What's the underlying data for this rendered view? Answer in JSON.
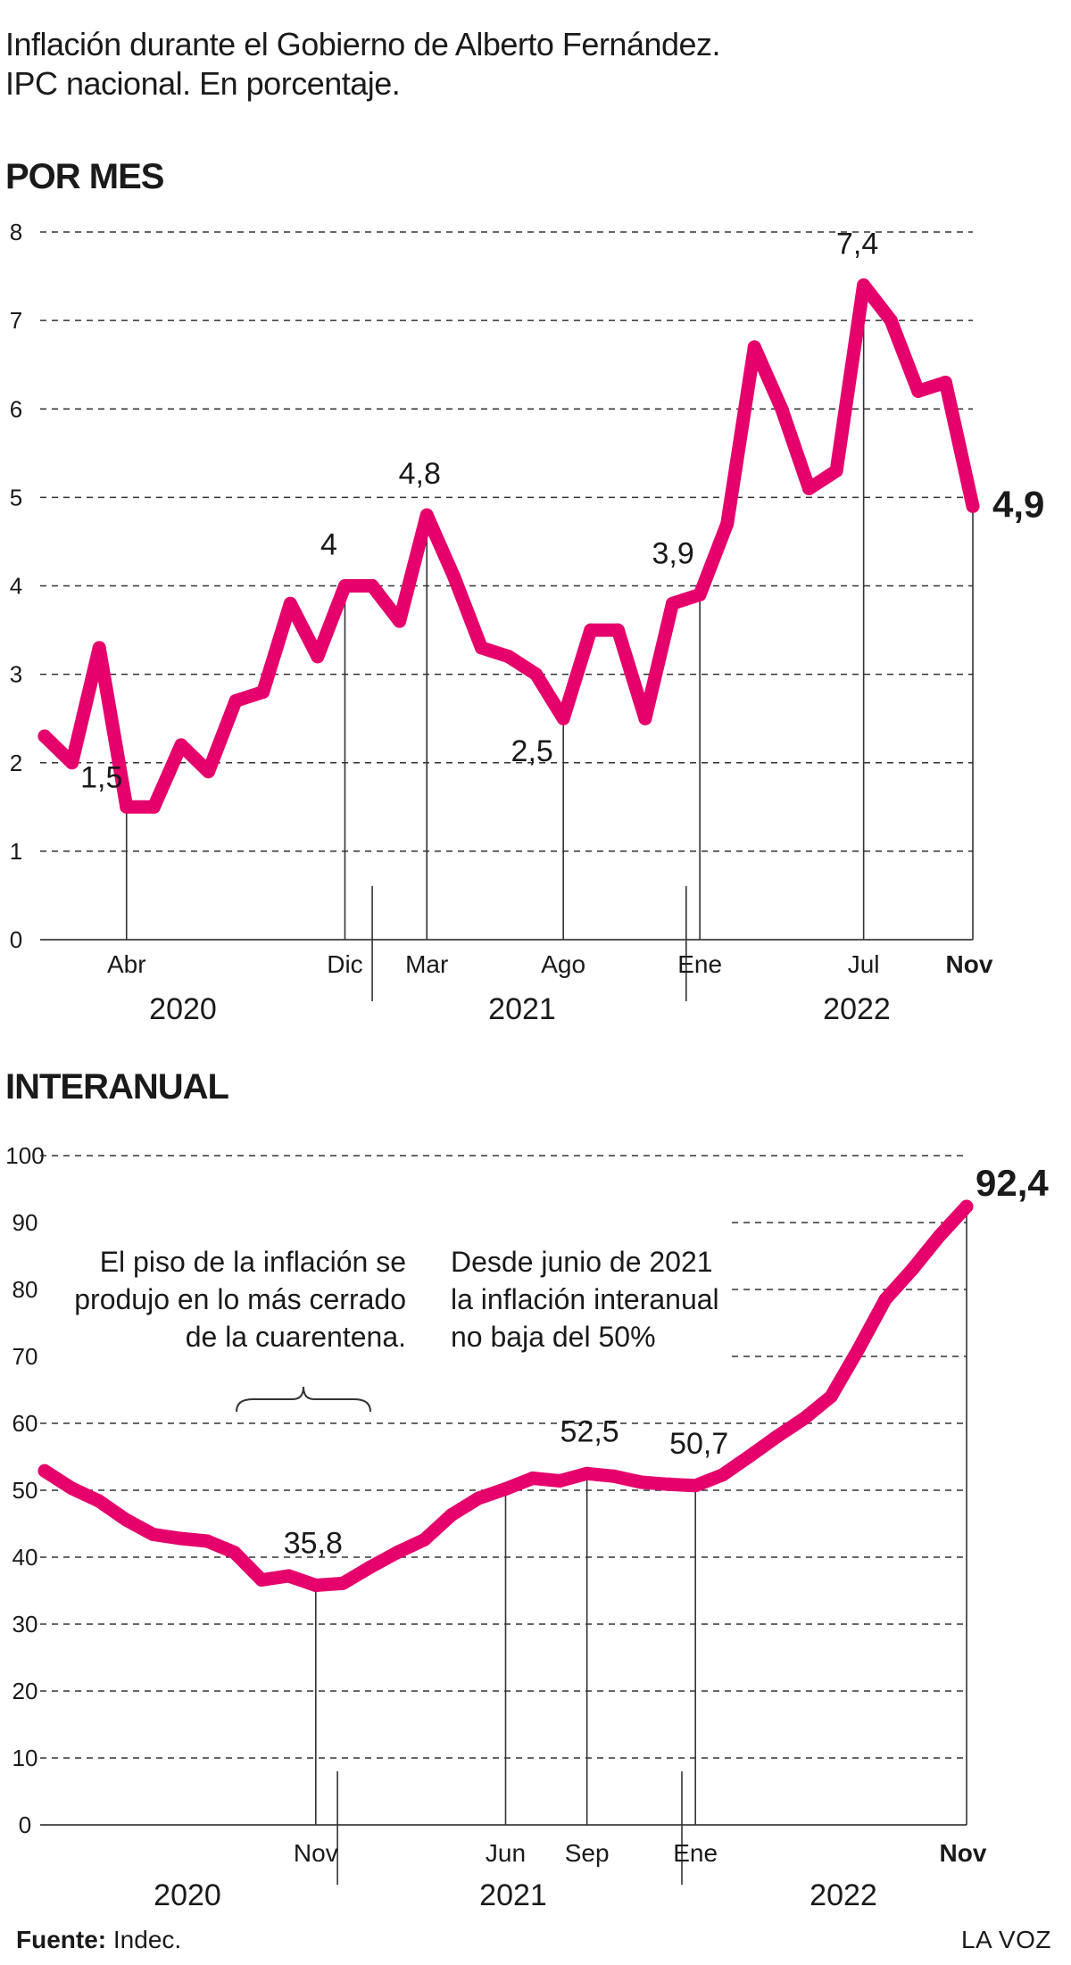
{
  "title_line1": "Inflación durante el Gobierno de Alberto Fernández.",
  "title_line2": "IPC nacional. En porcentaje.",
  "footer": {
    "source_label": "Fuente:",
    "source_value": "Indec.",
    "brand": "LA VOZ"
  },
  "colors": {
    "line": "#e6006b",
    "text": "#1a1a1a",
    "grid": "#333333"
  },
  "chart_data": [
    {
      "type": "line",
      "section_title": "POR MES",
      "ylim": [
        0,
        8
      ],
      "yticks": [
        "0",
        "1",
        "2",
        "3",
        "4",
        "5",
        "6",
        "7",
        "8"
      ],
      "x": [
        "2020-01",
        "2020-02",
        "2020-03",
        "2020-04",
        "2020-05",
        "2020-06",
        "2020-07",
        "2020-08",
        "2020-09",
        "2020-10",
        "2020-11",
        "2020-12",
        "2021-01",
        "2021-02",
        "2021-03",
        "2021-04",
        "2021-05",
        "2021-06",
        "2021-07",
        "2021-08",
        "2021-09",
        "2021-10",
        "2021-11",
        "2021-12",
        "2022-01",
        "2022-02",
        "2022-03",
        "2022-04",
        "2022-05",
        "2022-06",
        "2022-07",
        "2022-08",
        "2022-09",
        "2022-10",
        "2022-11"
      ],
      "series": [
        {
          "values": [
            2.3,
            2.0,
            3.3,
            1.5,
            1.5,
            2.2,
            1.9,
            2.7,
            2.8,
            3.8,
            3.2,
            4.0,
            4.0,
            3.6,
            4.8,
            4.1,
            3.3,
            3.2,
            3.0,
            2.5,
            3.5,
            3.5,
            2.5,
            3.8,
            3.9,
            4.7,
            6.7,
            6.0,
            5.1,
            5.3,
            7.4,
            7.0,
            6.2,
            6.3,
            4.9
          ]
        }
      ],
      "month_labels": [
        {
          "index": 3,
          "text": "Abr"
        },
        {
          "index": 11,
          "text": "Dic"
        },
        {
          "index": 14,
          "text": "Mar"
        },
        {
          "index": 19,
          "text": "Ago"
        },
        {
          "index": 24,
          "text": "Ene"
        },
        {
          "index": 30,
          "text": "Jul"
        },
        {
          "index": 34,
          "text": "Nov"
        }
      ],
      "year_labels": [
        "2020",
        "2021",
        "2022"
      ],
      "annotations": [
        {
          "index": 3,
          "text": "1,5"
        },
        {
          "index": 11,
          "text": "4"
        },
        {
          "index": 14,
          "text": "4,8"
        },
        {
          "index": 19,
          "text": "2,5"
        },
        {
          "index": 24,
          "text": "3,9"
        },
        {
          "index": 30,
          "text": "7,4"
        },
        {
          "index": 34,
          "text": "4,9"
        }
      ]
    },
    {
      "type": "line",
      "section_title": "INTERANUAL",
      "ylim": [
        0,
        100
      ],
      "yticks": [
        "0",
        "10",
        "20",
        "30",
        "40",
        "50",
        "60",
        "70",
        "80",
        "90",
        "100"
      ],
      "x": [
        "2020-01",
        "2020-02",
        "2020-03",
        "2020-04",
        "2020-05",
        "2020-06",
        "2020-07",
        "2020-08",
        "2020-09",
        "2020-10",
        "2020-11",
        "2020-12",
        "2021-01",
        "2021-02",
        "2021-03",
        "2021-04",
        "2021-05",
        "2021-06",
        "2021-07",
        "2021-08",
        "2021-09",
        "2021-10",
        "2021-11",
        "2021-12",
        "2022-01",
        "2022-02",
        "2022-03",
        "2022-04",
        "2022-05",
        "2022-06",
        "2022-07",
        "2022-08",
        "2022-09",
        "2022-10",
        "2022-11"
      ],
      "series": [
        {
          "values": [
            52.9,
            50.3,
            48.4,
            45.6,
            43.4,
            42.8,
            42.4,
            40.7,
            36.6,
            37.2,
            35.8,
            36.1,
            38.5,
            40.7,
            42.6,
            46.3,
            48.8,
            50.2,
            51.8,
            51.4,
            52.5,
            52.1,
            51.2,
            50.9,
            50.7,
            52.3,
            55.1,
            58.0,
            60.7,
            64.0,
            71.0,
            78.5,
            83.0,
            88.0,
            92.4
          ]
        }
      ],
      "month_labels": [
        {
          "index": 10,
          "text": "Nov"
        },
        {
          "index": 17,
          "text": "Jun"
        },
        {
          "index": 20,
          "text": "Sep"
        },
        {
          "index": 24,
          "text": "Ene"
        },
        {
          "index": 34,
          "text": "Nov"
        }
      ],
      "year_labels": [
        "2020",
        "2021",
        "2022"
      ],
      "annotations": [
        {
          "index": 10,
          "text": "35,8"
        },
        {
          "index": 20,
          "text": "52,5"
        },
        {
          "index": 24,
          "text": "50,7"
        },
        {
          "index": 34,
          "text": "92,4"
        }
      ],
      "notes": [
        {
          "lines": [
            "El piso de la inflación se",
            "produjo en lo más cerrado",
            "de la cuarentena."
          ]
        },
        {
          "lines": [
            "Desde junio de 2021",
            "la inflación interanual",
            "no baja del 50%"
          ]
        }
      ]
    }
  ]
}
